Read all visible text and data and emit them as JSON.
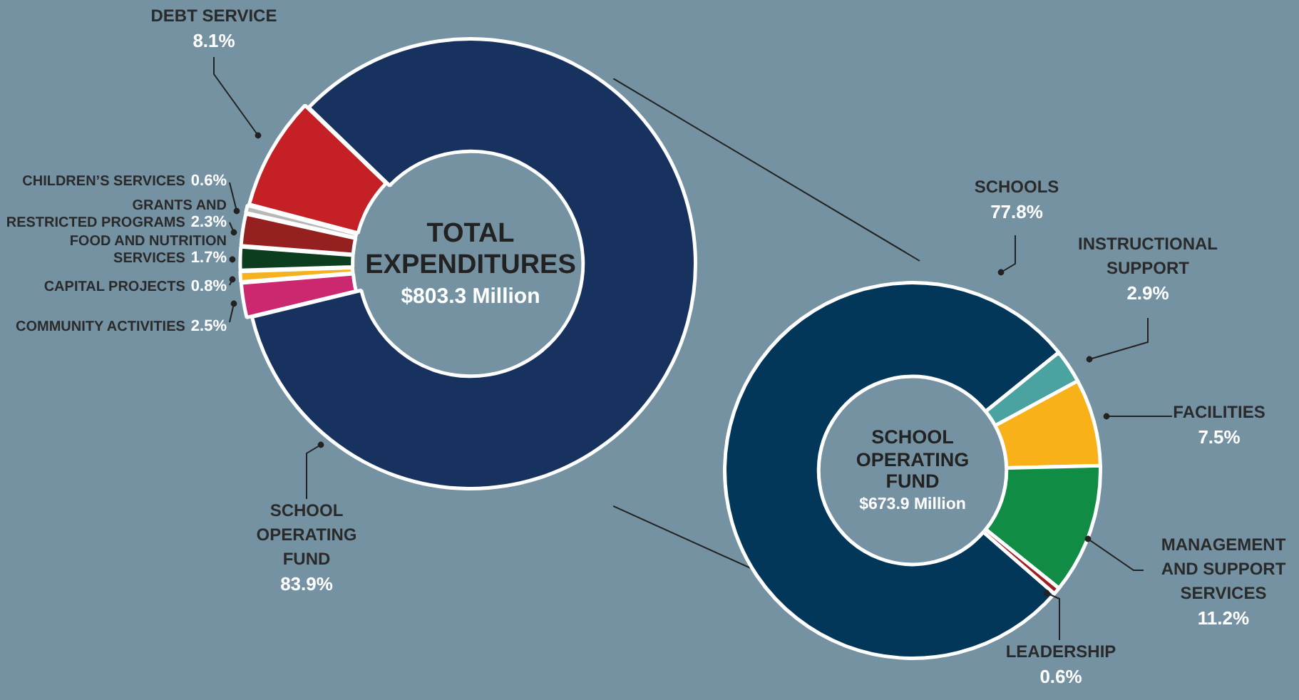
{
  "chart_data": [
    {
      "type": "donut",
      "title": "TOTAL EXPENDITURES",
      "subtitle": "$803.3 Million",
      "categories": [
        "SCHOOL OPERATING FUND",
        "COMMUNITY ACTIVITIES",
        "CAPITAL PROJECTS",
        "FOOD AND NUTRITION SERVICES",
        "GRANTS AND RESTRICTED PROGRAMS",
        "CHILDREN’S SERVICES",
        "DEBT SERVICE"
      ],
      "values": [
        83.9,
        2.5,
        0.8,
        1.7,
        2.3,
        0.6,
        8.1
      ],
      "colors": [
        "#17325e",
        "#cc2870",
        "#f5b21f",
        "#0c3d1e",
        "#952020",
        "#b8b8b8",
        "#c42026"
      ],
      "value_labels": [
        "83.9%",
        "2.5%",
        "0.8%",
        "1.7%",
        "2.3%",
        "0.6%",
        "8.1%"
      ]
    },
    {
      "type": "donut",
      "title": "SCHOOL OPERATING FUND",
      "subtitle": "$673.9 Million",
      "categories": [
        "SCHOOLS",
        "INSTRUCTIONAL SUPPORT",
        "FACILITIES",
        "MANAGEMENT AND SUPPORT SERVICES",
        "LEADERSHIP"
      ],
      "values": [
        77.8,
        2.9,
        7.5,
        11.2,
        0.6
      ],
      "colors": [
        "#03375a",
        "#4aa3a0",
        "#f9b11a",
        "#108c45",
        "#a01e22"
      ],
      "value_labels": [
        "77.8%",
        "2.9%",
        "7.5%",
        "11.2%",
        "0.6%"
      ]
    }
  ]
}
